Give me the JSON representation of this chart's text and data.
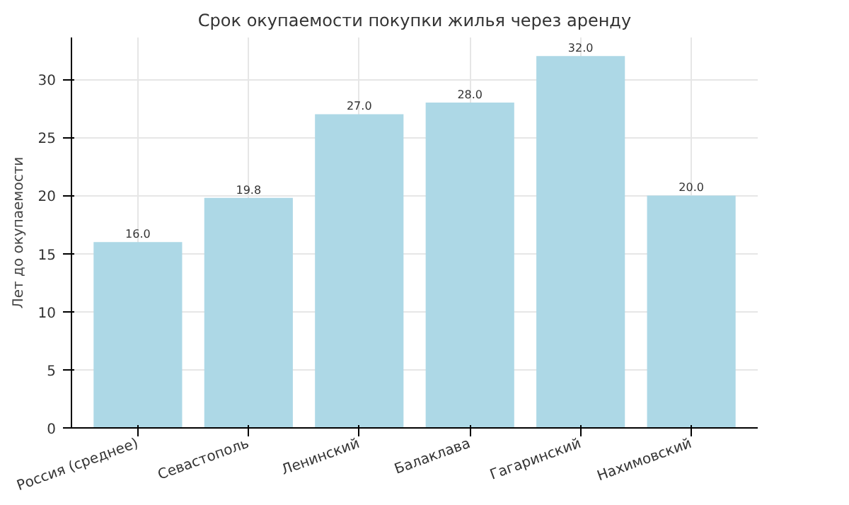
{
  "chart_data": {
    "type": "bar",
    "title": "Срок окупаемости покупки жилья через аренду",
    "ylabel": "Лет до окупаемости",
    "categories": [
      "Россия (среднее)",
      "Севастополь",
      "Ленинский",
      "Балаклава",
      "Гагаринский",
      "Нахимовский"
    ],
    "values": [
      16.0,
      19.8,
      27.0,
      28.0,
      32.0,
      20.0
    ],
    "color": "#add8e6",
    "ylim": [
      0,
      33.6
    ],
    "yticks": [
      0,
      5,
      10,
      15,
      20,
      25,
      30
    ],
    "grid": true,
    "value_labels": [
      "16.0",
      "19.8",
      "27.0",
      "28.0",
      "32.0",
      "20.0"
    ]
  }
}
